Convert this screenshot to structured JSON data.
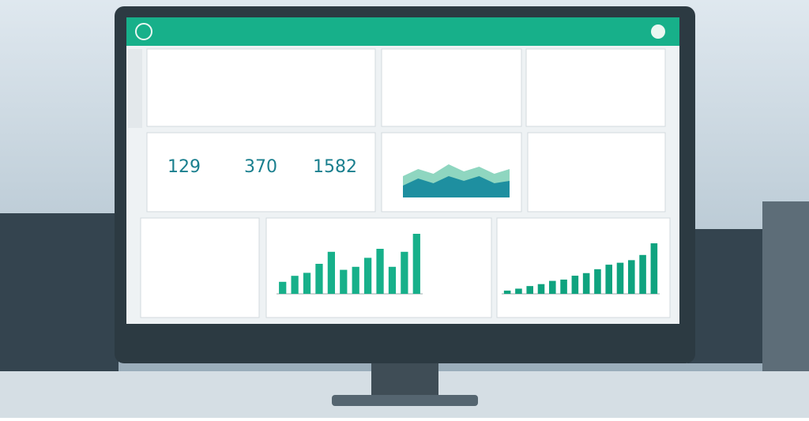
{
  "kpis": {
    "values": [
      129,
      370,
      1582
    ]
  },
  "bar_chart_left": {
    "values": [
      20,
      30,
      35,
      50,
      70,
      40,
      45,
      60,
      75,
      45,
      70,
      100
    ]
  },
  "bar_chart_right": {
    "values": [
      5,
      8,
      12,
      15,
      20,
      22,
      28,
      32,
      38,
      45,
      48,
      52,
      60,
      78
    ]
  },
  "area_chart": {
    "series": [
      {
        "values": [
          45,
          60,
          50,
          70,
          55,
          65,
          50,
          60
        ]
      },
      {
        "values": [
          25,
          40,
          30,
          45,
          35,
          45,
          30,
          35
        ]
      }
    ]
  }
}
